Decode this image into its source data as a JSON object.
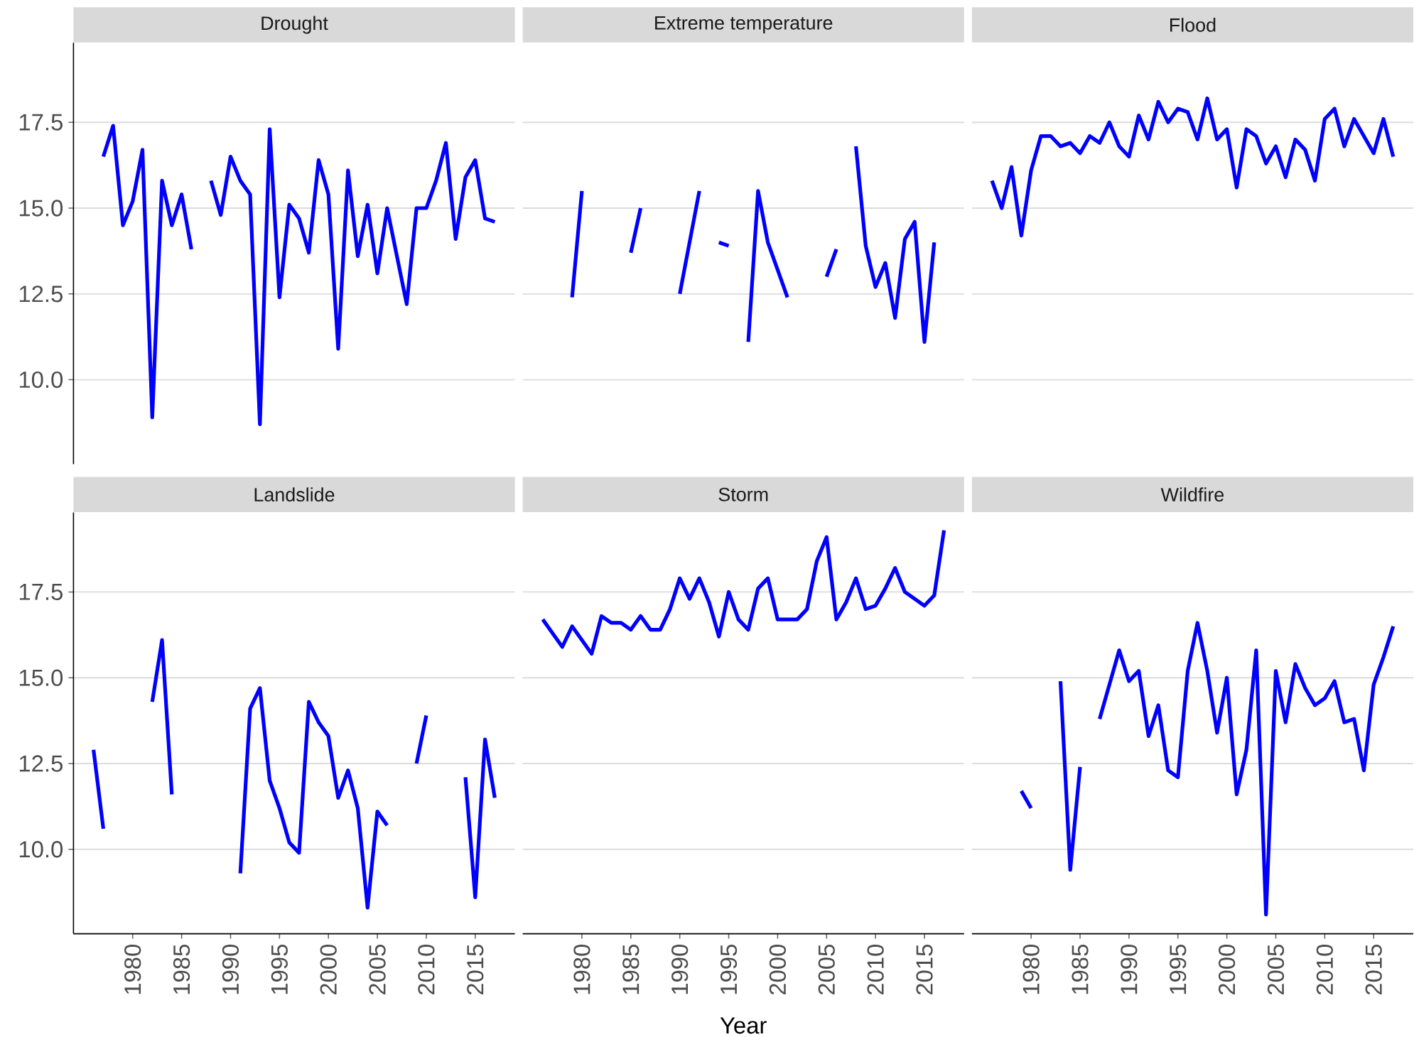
{
  "chart_data": [
    {
      "type": "line",
      "title": "Drought",
      "x": [
        1977,
        1978,
        1979,
        1980,
        1981,
        1982,
        1983,
        1984,
        1985,
        1986,
        1987,
        1988,
        1989,
        1990,
        1991,
        1992,
        1993,
        1994,
        1995,
        1996,
        1997,
        1998,
        1999,
        2000,
        2001,
        2002,
        2003,
        2004,
        2005,
        2006,
        2007,
        2008,
        2009,
        2010,
        2011,
        2012,
        2013,
        2014,
        2015,
        2016,
        2017
      ],
      "values": [
        16.5,
        17.4,
        14.5,
        15.2,
        16.7,
        8.9,
        15.8,
        14.5,
        15.4,
        13.8,
        null,
        15.8,
        14.8,
        16.5,
        15.8,
        15.4,
        8.7,
        17.3,
        12.4,
        15.1,
        14.7,
        13.7,
        16.4,
        15.4,
        10.9,
        16.1,
        13.6,
        15.1,
        13.1,
        15.0,
        13.6,
        12.2,
        15.0,
        15.0,
        15.8,
        16.9,
        14.1,
        15.9,
        16.4,
        14.7,
        14.6
      ],
      "color": "#0000ff",
      "xlim": [
        1973.95,
        2019.05
      ],
      "ylim": [
        7.54,
        19.82
      ],
      "yticks": [
        {
          "value": 10,
          "label": "10.0"
        },
        {
          "value": 12.5,
          "label": "12.5"
        },
        {
          "value": 15,
          "label": "15.0"
        },
        {
          "value": 17.5,
          "label": "17.5"
        }
      ],
      "grid": "y",
      "tick_labels": "y"
    },
    {
      "type": "line",
      "title": "Extreme temperature",
      "x": [
        1979,
        1980,
        1981,
        1982,
        1983,
        1984,
        1985,
        1986,
        1987,
        1988,
        1989,
        1990,
        1991,
        1992,
        1993,
        1994,
        1995,
        1996,
        1997,
        1998,
        1999,
        2000,
        2001,
        2002,
        2003,
        2004,
        2005,
        2006,
        2007,
        2008,
        2009,
        2010,
        2011,
        2012,
        2013,
        2014,
        2015,
        2016
      ],
      "values": [
        12.4,
        15.5,
        null,
        null,
        null,
        null,
        13.7,
        15.0,
        null,
        null,
        null,
        12.5,
        14.0,
        15.5,
        null,
        14.0,
        13.9,
        null,
        11.1,
        15.5,
        14.0,
        13.2,
        12.4,
        null,
        null,
        null,
        13.0,
        13.8,
        null,
        16.8,
        13.9,
        12.7,
        13.4,
        11.8,
        14.1,
        14.6,
        11.1,
        14.0
      ],
      "color": "#0000ff",
      "xlim": [
        1973.95,
        2019.05
      ],
      "yticks": [
        10,
        12.5,
        15,
        17.5
      ],
      "grid": "y",
      "tick_labels": false
    },
    {
      "type": "line",
      "title": "Flood",
      "x": [
        1976,
        1977,
        1978,
        1979,
        1980,
        1981,
        1982,
        1983,
        1984,
        1985,
        1986,
        1987,
        1988,
        1989,
        1990,
        1991,
        1992,
        1993,
        1994,
        1995,
        1996,
        1997,
        1998,
        1999,
        2000,
        2001,
        2002,
        2003,
        2004,
        2005,
        2006,
        2007,
        2008,
        2009,
        2010,
        2011,
        2012,
        2013,
        2014,
        2015,
        2016,
        2017
      ],
      "values": [
        15.8,
        15.0,
        16.2,
        14.2,
        16.1,
        17.1,
        17.1,
        16.8,
        16.9,
        16.6,
        17.1,
        16.9,
        17.5,
        16.8,
        16.5,
        17.7,
        17.0,
        18.1,
        17.5,
        17.9,
        17.8,
        17.0,
        18.2,
        17.0,
        17.3,
        15.6,
        17.3,
        17.1,
        16.3,
        16.8,
        15.9,
        17.0,
        16.7,
        15.8,
        17.6,
        17.9,
        16.8,
        17.6,
        17.1,
        16.6,
        17.6,
        16.5
      ],
      "color": "#0000ff",
      "xlim": [
        1973.95,
        2019.05
      ],
      "yticks": [
        10,
        12.5,
        15,
        17.5
      ],
      "grid": "y",
      "tick_labels": false
    },
    {
      "type": "line",
      "title": "Landslide",
      "x": [
        1976,
        1977,
        1978,
        1979,
        1980,
        1981,
        1982,
        1983,
        1984,
        1985,
        1986,
        1987,
        1988,
        1989,
        1990,
        1991,
        1992,
        1993,
        1994,
        1995,
        1996,
        1997,
        1998,
        1999,
        2000,
        2001,
        2002,
        2003,
        2004,
        2005,
        2006,
        2007,
        2008,
        2009,
        2010,
        2011,
        2012,
        2013,
        2014,
        2015,
        2016,
        2017
      ],
      "values": [
        12.9,
        10.6,
        null,
        null,
        null,
        null,
        14.3,
        16.1,
        11.6,
        null,
        null,
        null,
        null,
        null,
        null,
        9.3,
        14.1,
        14.7,
        12.0,
        11.2,
        10.2,
        9.9,
        14.3,
        13.7,
        13.3,
        11.5,
        12.3,
        11.2,
        8.3,
        11.1,
        10.7,
        null,
        null,
        12.5,
        13.9,
        null,
        null,
        null,
        12.1,
        8.6,
        13.2,
        11.5
      ],
      "color": "#0000ff",
      "xlim": [
        1973.95,
        2019.05
      ],
      "ylim": [
        7.54,
        19.82
      ],
      "xticks": [
        1980,
        1985,
        1990,
        1995,
        2000,
        2005,
        2010,
        2015
      ],
      "yticks": [
        {
          "value": 10,
          "label": "10.0"
        },
        {
          "value": 12.5,
          "label": "12.5"
        },
        {
          "value": 15,
          "label": "15.0"
        },
        {
          "value": 17.5,
          "label": "17.5"
        }
      ],
      "grid": "y"
    },
    {
      "type": "line",
      "title": "Storm",
      "xlabel": "Year",
      "x": [
        1976,
        1977,
        1978,
        1979,
        1980,
        1981,
        1982,
        1983,
        1984,
        1985,
        1986,
        1987,
        1988,
        1989,
        1990,
        1991,
        1992,
        1993,
        1994,
        1995,
        1996,
        1997,
        1998,
        1999,
        2000,
        2001,
        2002,
        2003,
        2004,
        2005,
        2006,
        2007,
        2008,
        2009,
        2010,
        2011,
        2012,
        2013,
        2014,
        2015,
        2016,
        2017
      ],
      "values": [
        16.7,
        16.3,
        15.9,
        16.5,
        16.1,
        15.7,
        16.8,
        16.6,
        16.6,
        16.4,
        16.8,
        16.4,
        16.4,
        17.0,
        17.9,
        17.3,
        17.9,
        17.2,
        16.2,
        17.5,
        16.7,
        16.4,
        17.6,
        17.9,
        16.7,
        16.7,
        16.7,
        17.0,
        18.4,
        19.1,
        16.7,
        17.2,
        17.9,
        17.0,
        17.1,
        17.6,
        18.2,
        17.5,
        17.3,
        17.1,
        17.4,
        19.3
      ],
      "color": "#0000ff",
      "xlim": [
        1973.95,
        2019.05
      ],
      "xticks": [
        1980,
        1985,
        1990,
        1995,
        2000,
        2005,
        2010,
        2015
      ],
      "yticks": [
        10,
        12.5,
        15,
        17.5
      ],
      "grid": "y",
      "tick_labels": "x"
    },
    {
      "type": "line",
      "title": "Wildfire",
      "x": [
        1979,
        1980,
        1981,
        1982,
        1983,
        1984,
        1985,
        1986,
        1987,
        1988,
        1989,
        1990,
        1991,
        1992,
        1993,
        1994,
        1995,
        1996,
        1997,
        1998,
        1999,
        2000,
        2001,
        2002,
        2003,
        2004,
        2005,
        2006,
        2007,
        2008,
        2009,
        2010,
        2011,
        2012,
        2013,
        2014,
        2015,
        2016,
        2017
      ],
      "values": [
        11.7,
        11.2,
        null,
        null,
        14.9,
        9.4,
        12.4,
        null,
        13.8,
        14.8,
        15.8,
        14.9,
        15.2,
        13.3,
        14.2,
        12.3,
        12.1,
        15.2,
        16.6,
        15.2,
        13.4,
        15.0,
        11.6,
        12.9,
        15.8,
        8.1,
        15.2,
        13.7,
        15.4,
        14.7,
        14.2,
        14.4,
        14.9,
        13.7,
        13.8,
        12.3,
        14.8,
        15.6,
        16.5
      ],
      "color": "#0000ff",
      "xlim": [
        1973.95,
        2019.05
      ],
      "xticks": [
        1980,
        1985,
        1990,
        1995,
        2000,
        2005,
        2010,
        2015
      ],
      "yticks": [
        10,
        12.5,
        15,
        17.5
      ],
      "grid": "y",
      "tick_labels": "x"
    }
  ]
}
